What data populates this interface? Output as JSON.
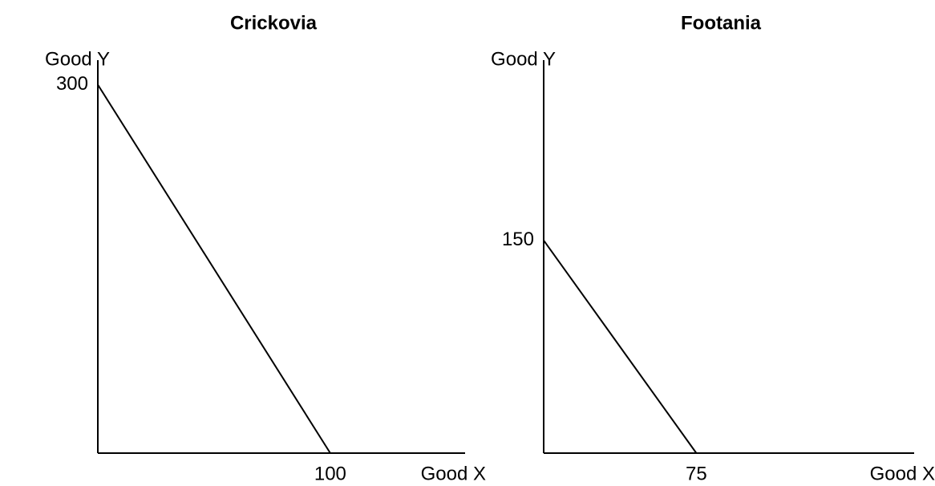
{
  "chart_data": [
    {
      "type": "line",
      "title": "Crickovia",
      "x_label": "Good X",
      "y_label": "Good Y",
      "x": [
        0,
        100
      ],
      "values": [
        300,
        0
      ],
      "color": "#000000",
      "xlim": [
        0,
        158
      ],
      "ylim": [
        0,
        320
      ],
      "xticks": [
        100
      ],
      "yticks": [
        300
      ],
      "grid": false
    },
    {
      "type": "line",
      "title": "Footania",
      "x_label": "Good X",
      "y_label": "Good Y",
      "x": [
        0,
        75
      ],
      "values": [
        150,
        0
      ],
      "color": "#000000",
      "xlim": [
        0,
        182
      ],
      "ylim": [
        0,
        277
      ],
      "xticks": [
        75
      ],
      "yticks": [
        150
      ],
      "grid": false
    }
  ]
}
